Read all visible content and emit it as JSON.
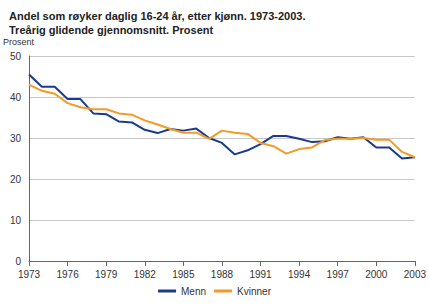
{
  "chart_data": {
    "type": "line",
    "title": "Andel som røyker daglig 16-24 år, etter kjønn. 1973-2003.\nTreårig glidende gjennomsnitt. Prosent",
    "y_label": "Prosent",
    "x": [
      1973,
      1974,
      1975,
      1976,
      1977,
      1978,
      1979,
      1980,
      1981,
      1982,
      1983,
      1984,
      1985,
      1986,
      1987,
      1988,
      1989,
      1990,
      1991,
      1992,
      1993,
      1994,
      1995,
      1996,
      1997,
      1998,
      1999,
      2000,
      2001,
      2002,
      2003
    ],
    "series": [
      {
        "name": "Menn",
        "color": "#1a3b8c",
        "values": [
          45.5,
          42.5,
          42.5,
          39.5,
          39.5,
          36,
          35.8,
          34,
          33.8,
          32,
          31.2,
          32.2,
          31.8,
          32.3,
          30,
          28.8,
          26,
          27,
          28.5,
          30.5,
          30.5,
          29.8,
          29,
          29.2,
          30.2,
          29.8,
          30.2,
          27.7,
          27.7,
          25,
          25.3
        ]
      },
      {
        "name": "Kvinner",
        "color": "#f39a28",
        "values": [
          43,
          41.5,
          40.8,
          38.5,
          37.5,
          37,
          37,
          36,
          35.7,
          34.3,
          33.3,
          32.2,
          31.3,
          31.3,
          29.8,
          31.8,
          31.3,
          31,
          28.8,
          28,
          26.2,
          27.3,
          27.7,
          29.5,
          29.8,
          29.8,
          30,
          29.6,
          29.6,
          26.6,
          25.3
        ]
      }
    ],
    "xlim": [
      1973,
      2003
    ],
    "xticks": [
      1973,
      1976,
      1979,
      1982,
      1985,
      1988,
      1991,
      1994,
      1997,
      2000,
      2003
    ],
    "ylim": [
      0,
      50
    ],
    "yticks": [
      0,
      10,
      20,
      30,
      40,
      50
    ],
    "grid": true,
    "legend": "bottom"
  }
}
